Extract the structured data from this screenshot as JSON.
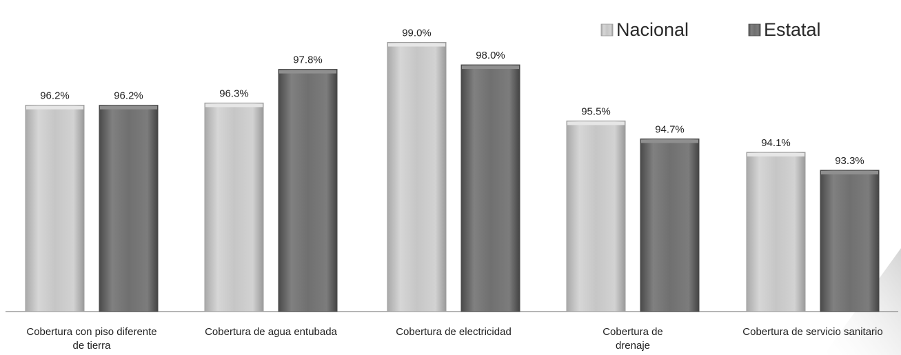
{
  "chart_data": {
    "type": "bar",
    "title": "",
    "xlabel": "",
    "ylabel": "",
    "categories": [
      [
        "Cobertura con piso diferente",
        "de tierra"
      ],
      [
        "Cobertura de agua entubada"
      ],
      [
        "Cobertura de electricidad"
      ],
      [
        "Cobertura de",
        "drenaje"
      ],
      [
        "Cobertura de servicio sanitario"
      ]
    ],
    "series": [
      {
        "name": "Nacional",
        "color": "#c4c4c4",
        "values": [
          96.2,
          96.3,
          99.0,
          95.5,
          94.1
        ],
        "labels": [
          "96.2%",
          "96.3%",
          "99.0%",
          "95.5%",
          "94.1%"
        ]
      },
      {
        "name": "Estatal",
        "color": "#6e6e6e",
        "values": [
          96.2,
          97.8,
          98.0,
          94.7,
          93.3
        ],
        "labels": [
          "96.2%",
          "97.8%",
          "98.0%",
          "94.7%",
          "93.3%"
        ]
      }
    ],
    "ylim": [
      87.0,
      99.6
    ],
    "grid": false,
    "legend_position": "top-right"
  }
}
